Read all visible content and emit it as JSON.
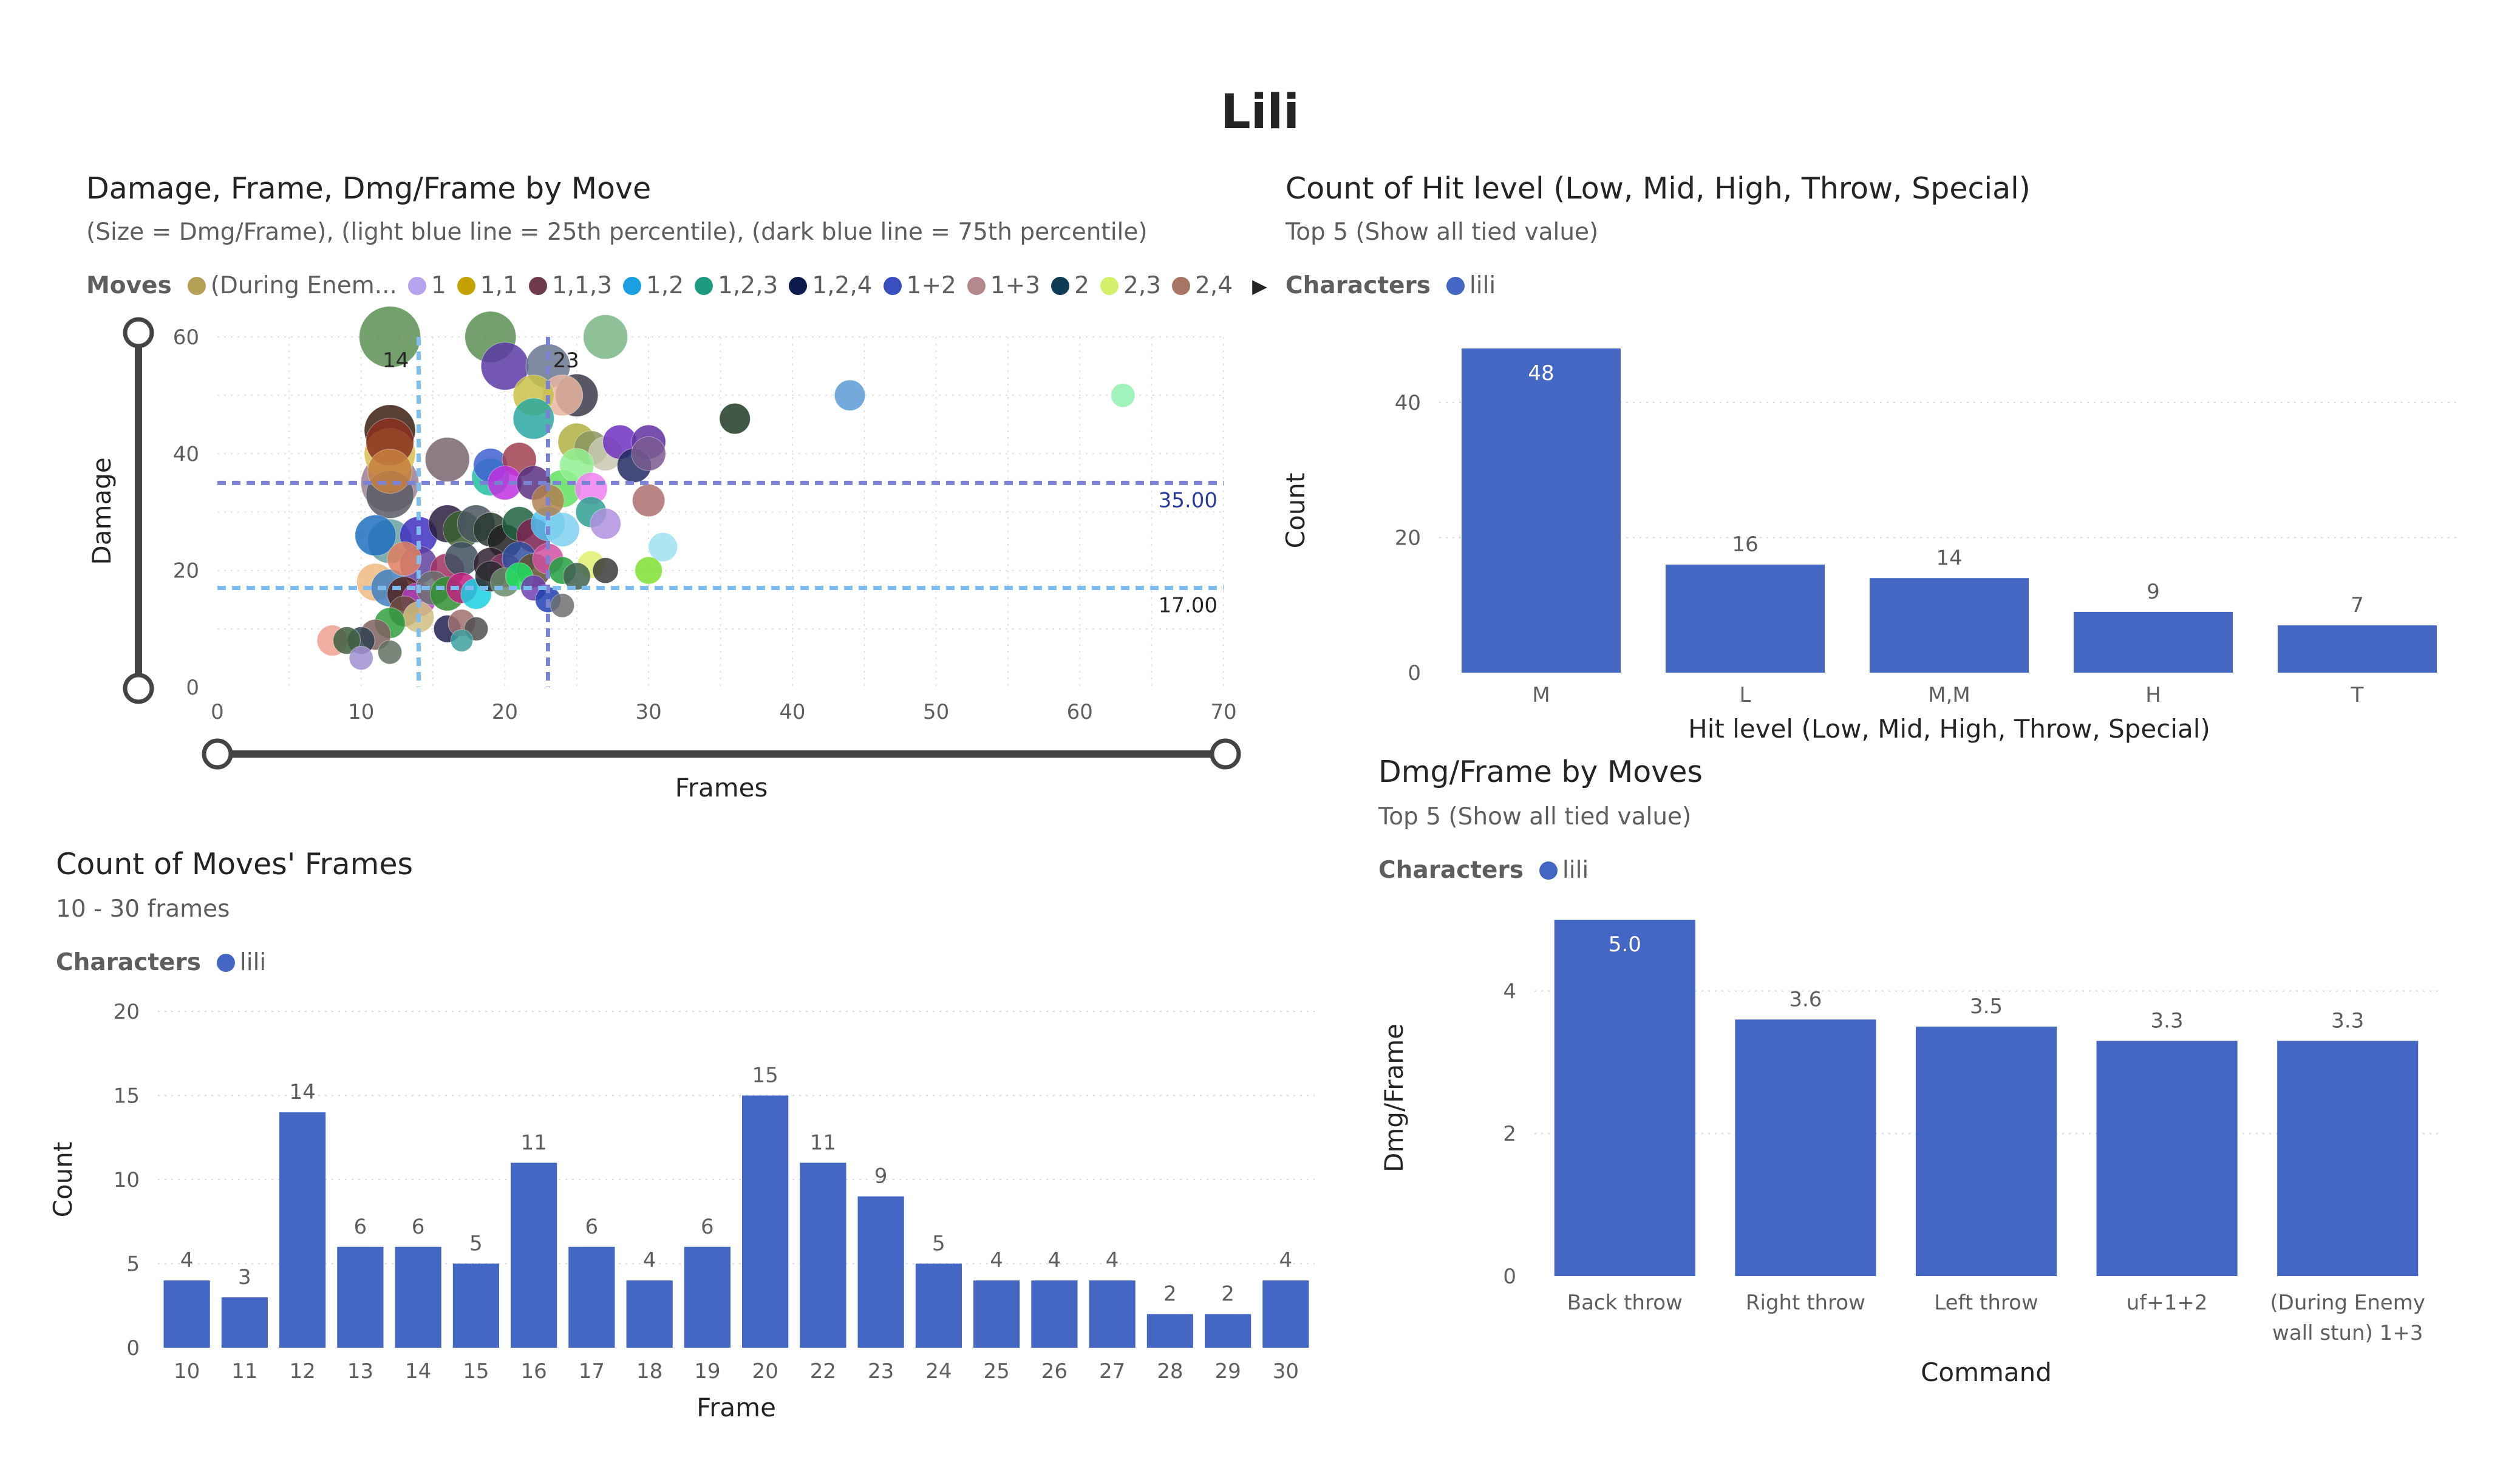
{
  "page": {
    "title": "Lili"
  },
  "scatter": {
    "title": "Damage, Frame, Dmg/Frame by Move",
    "subtitle": "(Size = Dmg/Frame), (light blue line = 25th percentile), (dark blue line = 75th percentile)",
    "legend": {
      "label": "Moves",
      "items": [
        {
          "label": "(During Enem...",
          "color": "#b5a055"
        },
        {
          "label": "1",
          "color": "#b7a3ee"
        },
        {
          "label": "1,1",
          "color": "#c4a300"
        },
        {
          "label": "1,1,3",
          "color": "#6e3b4e"
        },
        {
          "label": "1,2",
          "color": "#1aa0e0"
        },
        {
          "label": "1,2,3",
          "color": "#1c9a82"
        },
        {
          "label": "1,2,4",
          "color": "#0d1b4d"
        },
        {
          "label": "1+2",
          "color": "#3a4fbf"
        },
        {
          "label": "1+3",
          "color": "#b5878e"
        },
        {
          "label": "2",
          "color": "#0f3b54"
        },
        {
          "label": "2,3",
          "color": "#d2f06b"
        },
        {
          "label": "2,4",
          "color": "#a87565"
        }
      ],
      "more_icon": "caret-right-icon"
    }
  },
  "hit_level": {
    "title": "Count of Hit level (Low, Mid, High, Throw, Special)",
    "subtitle": "Top 5 (Show all tied value)",
    "legend_label": "Characters",
    "legend_item": "lili",
    "color": "#4467c4"
  },
  "moves_frames": {
    "title": "Count of Moves' Frames",
    "subtitle": "10 - 30 frames",
    "legend_label": "Characters",
    "legend_item": "lili",
    "color": "#4467c4"
  },
  "dmg_frame": {
    "title": "Dmg/Frame by Moves",
    "subtitle": "Top 5 (Show all tied value)",
    "legend_label": "Characters",
    "legend_item": "lili",
    "color": "#4467c4"
  },
  "chart_data": [
    {
      "type": "scatter",
      "title": "Damage, Frame, Dmg/Frame by Move",
      "xlabel": "Frames",
      "ylabel": "Damage",
      "xlim": [
        0,
        70
      ],
      "ylim": [
        0,
        60
      ],
      "xticks": [
        0,
        10,
        20,
        30,
        40,
        50,
        60,
        70
      ],
      "yticks": [
        0,
        20,
        40,
        60
      ],
      "reference_lines": {
        "x_p25": 14,
        "x_p25_label": "14",
        "x_p75": 23,
        "x_p75_label": "23",
        "y_p25": 17,
        "y_p25_label": "17.00",
        "y_p75": 35,
        "y_p75_label": "35.00"
      },
      "points": [
        {
          "x": 12,
          "y": 60,
          "s": 3.6,
          "c": "#5a8f52"
        },
        {
          "x": 19,
          "y": 60,
          "s": 3.0,
          "c": "#5a8f52"
        },
        {
          "x": 27,
          "y": 60,
          "s": 2.6,
          "c": "#7ab686"
        },
        {
          "x": 23,
          "y": 55,
          "s": 2.6,
          "c": "#6a7590"
        },
        {
          "x": 20,
          "y": 55,
          "s": 2.8,
          "c": "#5b3aa6"
        },
        {
          "x": 24,
          "y": 50,
          "s": 2.4,
          "c": "#e8b5a0"
        },
        {
          "x": 22,
          "y": 50,
          "s": 2.4,
          "c": "#c9c146"
        },
        {
          "x": 25,
          "y": 50,
          "s": 2.5,
          "c": "#3a3a4a"
        },
        {
          "x": 22,
          "y": 46,
          "s": 2.4,
          "c": "#2aa8a0"
        },
        {
          "x": 44,
          "y": 50,
          "s": 1.8,
          "c": "#5b9bd5"
        },
        {
          "x": 63,
          "y": 50,
          "s": 1.4,
          "c": "#90f0b0"
        },
        {
          "x": 36,
          "y": 46,
          "s": 1.8,
          "c": "#1e3b25"
        },
        {
          "x": 12,
          "y": 44,
          "s": 3.0,
          "c": "#3b1e10"
        },
        {
          "x": 12,
          "y": 42,
          "s": 2.8,
          "c": "#8a3020"
        },
        {
          "x": 12,
          "y": 40,
          "s": 3.0,
          "c": "#d8c050"
        },
        {
          "x": 12,
          "y": 37,
          "s": 2.6,
          "c": "#c88040"
        },
        {
          "x": 12,
          "y": 35,
          "s": 3.4,
          "c": "#9a7f90"
        },
        {
          "x": 12,
          "y": 33,
          "s": 2.8,
          "c": "#5a5a66"
        },
        {
          "x": 16,
          "y": 39,
          "s": 2.6,
          "c": "#7a6570"
        },
        {
          "x": 19,
          "y": 38,
          "s": 2.0,
          "c": "#4060d0"
        },
        {
          "x": 21,
          "y": 39,
          "s": 2.0,
          "c": "#a04050"
        },
        {
          "x": 19,
          "y": 36,
          "s": 2.2,
          "c": "#20c0a0"
        },
        {
          "x": 20,
          "y": 35,
          "s": 2.0,
          "c": "#c030e0"
        },
        {
          "x": 22,
          "y": 35,
          "s": 2.0,
          "c": "#5a3080"
        },
        {
          "x": 24,
          "y": 34,
          "s": 2.2,
          "c": "#60e060"
        },
        {
          "x": 25,
          "y": 42,
          "s": 2.2,
          "c": "#b0b040"
        },
        {
          "x": 26,
          "y": 41,
          "s": 2.0,
          "c": "#8a9560"
        },
        {
          "x": 27,
          "y": 40,
          "s": 2.0,
          "c": "#c8c8b0"
        },
        {
          "x": 28,
          "y": 42,
          "s": 2.0,
          "c": "#7030c0"
        },
        {
          "x": 30,
          "y": 42,
          "s": 2.0,
          "c": "#6030a0"
        },
        {
          "x": 29,
          "y": 38,
          "s": 2.0,
          "c": "#202a60"
        },
        {
          "x": 30,
          "y": 40,
          "s": 2.0,
          "c": "#7a5a90"
        },
        {
          "x": 25,
          "y": 38,
          "s": 2.0,
          "c": "#90f090"
        },
        {
          "x": 30,
          "y": 32,
          "s": 1.9,
          "c": "#b07070"
        },
        {
          "x": 26,
          "y": 34,
          "s": 1.9,
          "c": "#f080f0"
        },
        {
          "x": 23,
          "y": 32,
          "s": 1.9,
          "c": "#b08050"
        },
        {
          "x": 11,
          "y": 26,
          "s": 2.4,
          "c": "#2070c0"
        },
        {
          "x": 12,
          "y": 25,
          "s": 2.6,
          "c": "#6aa0a0"
        },
        {
          "x": 14,
          "y": 26,
          "s": 2.2,
          "c": "#4030c0"
        },
        {
          "x": 16,
          "y": 28,
          "s": 2.2,
          "c": "#2a1e40"
        },
        {
          "x": 17,
          "y": 27,
          "s": 2.2,
          "c": "#3a6030"
        },
        {
          "x": 18,
          "y": 28,
          "s": 2.2,
          "c": "#4a5560"
        },
        {
          "x": 19,
          "y": 27,
          "s": 2.0,
          "c": "#2a3a30"
        },
        {
          "x": 20,
          "y": 25,
          "s": 2.0,
          "c": "#202020"
        },
        {
          "x": 21,
          "y": 28,
          "s": 2.0,
          "c": "#1e6040"
        },
        {
          "x": 22,
          "y": 26,
          "s": 2.0,
          "c": "#7a2050"
        },
        {
          "x": 23,
          "y": 28,
          "s": 2.0,
          "c": "#50c0f0"
        },
        {
          "x": 24,
          "y": 27,
          "s": 2.0,
          "c": "#80d0f0"
        },
        {
          "x": 26,
          "y": 30,
          "s": 1.8,
          "c": "#30a090"
        },
        {
          "x": 27,
          "y": 28,
          "s": 1.8,
          "c": "#b090e0"
        },
        {
          "x": 13,
          "y": 22,
          "s": 2.0,
          "c": "#e08060"
        },
        {
          "x": 14,
          "y": 21,
          "s": 2.2,
          "c": "#6040a0"
        },
        {
          "x": 16,
          "y": 20,
          "s": 2.0,
          "c": "#a03060"
        },
        {
          "x": 17,
          "y": 22,
          "s": 2.0,
          "c": "#405060"
        },
        {
          "x": 19,
          "y": 21,
          "s": 2.0,
          "c": "#302030"
        },
        {
          "x": 20,
          "y": 20,
          "s": 2.0,
          "c": "#8a3a6a"
        },
        {
          "x": 21,
          "y": 22,
          "s": 2.0,
          "c": "#3050a0"
        },
        {
          "x": 22,
          "y": 20,
          "s": 2.0,
          "c": "#605030"
        },
        {
          "x": 23,
          "y": 22,
          "s": 1.8,
          "c": "#d050a0"
        },
        {
          "x": 24,
          "y": 20,
          "s": 1.6,
          "c": "#20a040"
        },
        {
          "x": 26,
          "y": 21,
          "s": 1.6,
          "c": "#e0f070"
        },
        {
          "x": 27,
          "y": 20,
          "s": 1.5,
          "c": "#3a3a3a"
        },
        {
          "x": 30,
          "y": 20,
          "s": 1.6,
          "c": "#80e030"
        },
        {
          "x": 31,
          "y": 24,
          "s": 1.7,
          "c": "#a0e0f0"
        },
        {
          "x": 25,
          "y": 19,
          "s": 1.6,
          "c": "#406050"
        },
        {
          "x": 11,
          "y": 18,
          "s": 2.2,
          "c": "#f0b880"
        },
        {
          "x": 12,
          "y": 17,
          "s": 2.2,
          "c": "#4080c0"
        },
        {
          "x": 13,
          "y": 16,
          "s": 2.0,
          "c": "#502020"
        },
        {
          "x": 14,
          "y": 15,
          "s": 2.0,
          "c": "#b040c0"
        },
        {
          "x": 15,
          "y": 17,
          "s": 2.0,
          "c": "#6a7070"
        },
        {
          "x": 16,
          "y": 16,
          "s": 2.0,
          "c": "#309030"
        },
        {
          "x": 17,
          "y": 17,
          "s": 1.8,
          "c": "#c02080"
        },
        {
          "x": 18,
          "y": 16,
          "s": 1.8,
          "c": "#1ad0e0"
        },
        {
          "x": 19,
          "y": 19,
          "s": 1.8,
          "c": "#2a2a30"
        },
        {
          "x": 20,
          "y": 18,
          "s": 1.7,
          "c": "#6a8a6a"
        },
        {
          "x": 21,
          "y": 19,
          "s": 1.6,
          "c": "#20e060"
        },
        {
          "x": 22,
          "y": 17,
          "s": 1.5,
          "c": "#7040b0"
        },
        {
          "x": 23,
          "y": 15,
          "s": 1.5,
          "c": "#2040b0"
        },
        {
          "x": 24,
          "y": 14,
          "s": 1.4,
          "c": "#707070"
        },
        {
          "x": 13,
          "y": 13,
          "s": 1.8,
          "c": "#6a4a40"
        },
        {
          "x": 14,
          "y": 12,
          "s": 1.8,
          "c": "#d0c080"
        },
        {
          "x": 16,
          "y": 10,
          "s": 1.6,
          "c": "#202050"
        },
        {
          "x": 17,
          "y": 11,
          "s": 1.6,
          "c": "#a07070"
        },
        {
          "x": 18,
          "y": 10,
          "s": 1.4,
          "c": "#505050"
        },
        {
          "x": 12,
          "y": 11,
          "s": 1.8,
          "c": "#30a040"
        },
        {
          "x": 11,
          "y": 9,
          "s": 1.8,
          "c": "#806060"
        },
        {
          "x": 10,
          "y": 8,
          "s": 1.6,
          "c": "#304050"
        },
        {
          "x": 9,
          "y": 8,
          "s": 1.6,
          "c": "#406040"
        },
        {
          "x": 8,
          "y": 8,
          "s": 1.8,
          "c": "#f0a090"
        },
        {
          "x": 12,
          "y": 6,
          "s": 1.4,
          "c": "#607060"
        },
        {
          "x": 10,
          "y": 5,
          "s": 1.4,
          "c": "#a090d0"
        },
        {
          "x": 17,
          "y": 8,
          "s": 1.3,
          "c": "#40a0a0"
        }
      ]
    },
    {
      "type": "bar",
      "title": "Count of Hit level (Low, Mid, High, Throw, Special)",
      "xlabel": "Hit level (Low, Mid, High, Throw, Special)",
      "ylabel": "Count",
      "ylim": [
        0,
        48
      ],
      "yticks": [
        0,
        20,
        40
      ],
      "categories": [
        "M",
        "L",
        "M,M",
        "H",
        "T"
      ],
      "values": [
        48,
        16,
        14,
        9,
        7
      ],
      "series": [
        {
          "name": "lili",
          "values": [
            48,
            16,
            14,
            9,
            7
          ]
        }
      ]
    },
    {
      "type": "bar",
      "title": "Count of Moves' Frames",
      "xlabel": "Frame",
      "ylabel": "Count",
      "ylim": [
        0,
        20
      ],
      "yticks": [
        0,
        5,
        10,
        15,
        20
      ],
      "categories": [
        "10",
        "11",
        "12",
        "13",
        "14",
        "15",
        "16",
        "17",
        "18",
        "19",
        "20",
        "22",
        "23",
        "24",
        "25",
        "26",
        "27",
        "28",
        "29",
        "30"
      ],
      "values": [
        4,
        3,
        14,
        6,
        6,
        5,
        11,
        6,
        4,
        6,
        15,
        11,
        9,
        5,
        4,
        4,
        4,
        2,
        2,
        4
      ],
      "series": [
        {
          "name": "lili",
          "values": [
            4,
            3,
            14,
            6,
            6,
            5,
            11,
            6,
            4,
            6,
            15,
            11,
            9,
            5,
            4,
            4,
            4,
            2,
            2,
            4
          ]
        }
      ]
    },
    {
      "type": "bar",
      "title": "Dmg/Frame by Moves",
      "xlabel": "Command",
      "ylabel": "Dmg/Frame",
      "ylim": [
        0,
        5
      ],
      "yticks": [
        0,
        2,
        4
      ],
      "categories": [
        "Back throw",
        "Right throw",
        "Left throw",
        "uf+1+2",
        "(During Enemy wall stun) 1+3"
      ],
      "category_lines": [
        [
          "Back throw"
        ],
        [
          "Right throw"
        ],
        [
          "Left throw"
        ],
        [
          "uf+1+2"
        ],
        [
          "(During Enemy",
          "wall stun) 1+3"
        ]
      ],
      "values": [
        5.0,
        3.6,
        3.5,
        3.3,
        3.3
      ],
      "value_labels": [
        "5.0",
        "3.6",
        "3.5",
        "3.3",
        "3.3"
      ],
      "series": [
        {
          "name": "lili",
          "values": [
            5.0,
            3.6,
            3.5,
            3.3,
            3.3
          ]
        }
      ]
    }
  ]
}
